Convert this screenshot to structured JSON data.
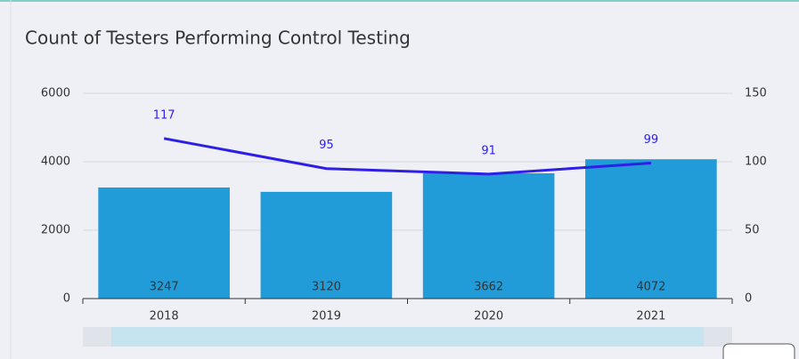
{
  "chart_data": {
    "type": "bar-line",
    "title": "Count of Testers Performing Control Testing",
    "categories": [
      "2018",
      "2019",
      "2020",
      "2021"
    ],
    "series": [
      {
        "color": "#229cd9",
        "values": [
          3247,
          3120,
          3662,
          4072
        ]
      },
      {
        "color": "#2d1fe6",
        "values": [
          117,
          95,
          91,
          99
        ],
        "axis": "y2"
      }
    ],
    "ylim": [
      0,
      6000
    ],
    "yticks": [
      0,
      2000,
      4000,
      6000
    ],
    "y2lim": [
      0,
      150
    ],
    "y2ticks": [
      0,
      50,
      100,
      150
    ],
    "grid": true
  }
}
